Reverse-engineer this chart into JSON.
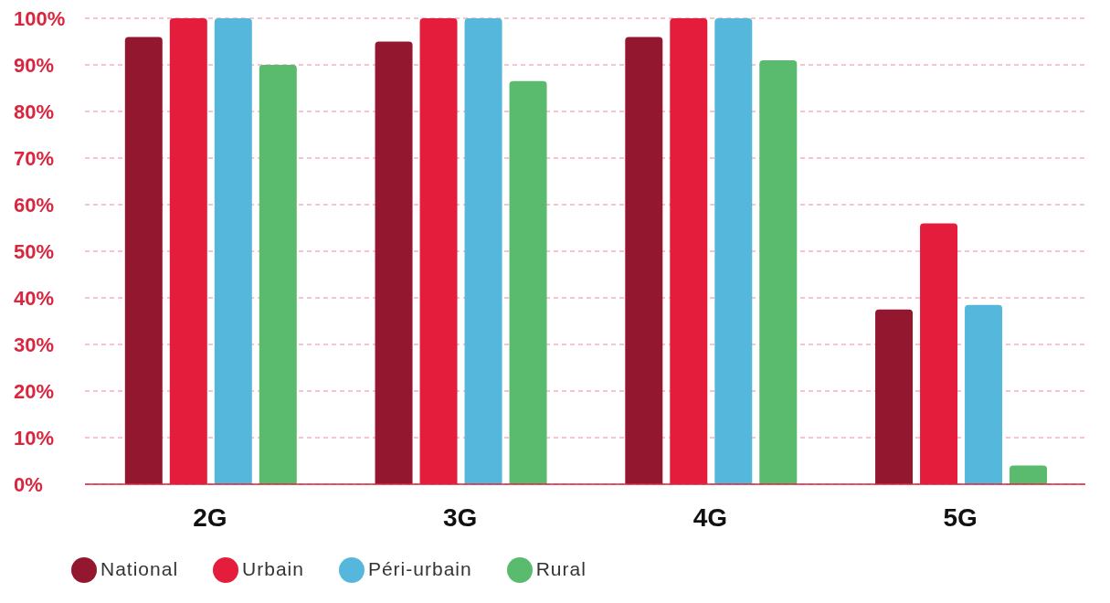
{
  "chart_data": {
    "type": "bar",
    "categories": [
      "2G",
      "3G",
      "4G",
      "5G"
    ],
    "series": [
      {
        "name": "National",
        "color": "#93182f",
        "values": [
          96,
          95,
          96,
          37.5
        ]
      },
      {
        "name": "Urbain",
        "color": "#e31d3b",
        "values": [
          100,
          100,
          100,
          56
        ]
      },
      {
        "name": "Péri-urbain",
        "color": "#56b7dc",
        "values": [
          100,
          100,
          100,
          38.5
        ]
      },
      {
        "name": "Rural",
        "color": "#5aba6e",
        "values": [
          90,
          86.5,
          91,
          4
        ]
      }
    ],
    "ylim": [
      0,
      100
    ],
    "yticks": [
      {
        "value": 0,
        "label": "0%"
      },
      {
        "value": 10,
        "label": "10%"
      },
      {
        "value": 20,
        "label": "20%"
      },
      {
        "value": 30,
        "label": "30%"
      },
      {
        "value": 40,
        "label": "40%"
      },
      {
        "value": 50,
        "label": "50%"
      },
      {
        "value": 60,
        "label": "60%"
      },
      {
        "value": 70,
        "label": "70%"
      },
      {
        "value": 80,
        "label": "80%"
      },
      {
        "value": 90,
        "label": "90%"
      },
      {
        "value": 100,
        "label": "100%"
      }
    ],
    "grid": "y",
    "legend": "bottom left"
  }
}
